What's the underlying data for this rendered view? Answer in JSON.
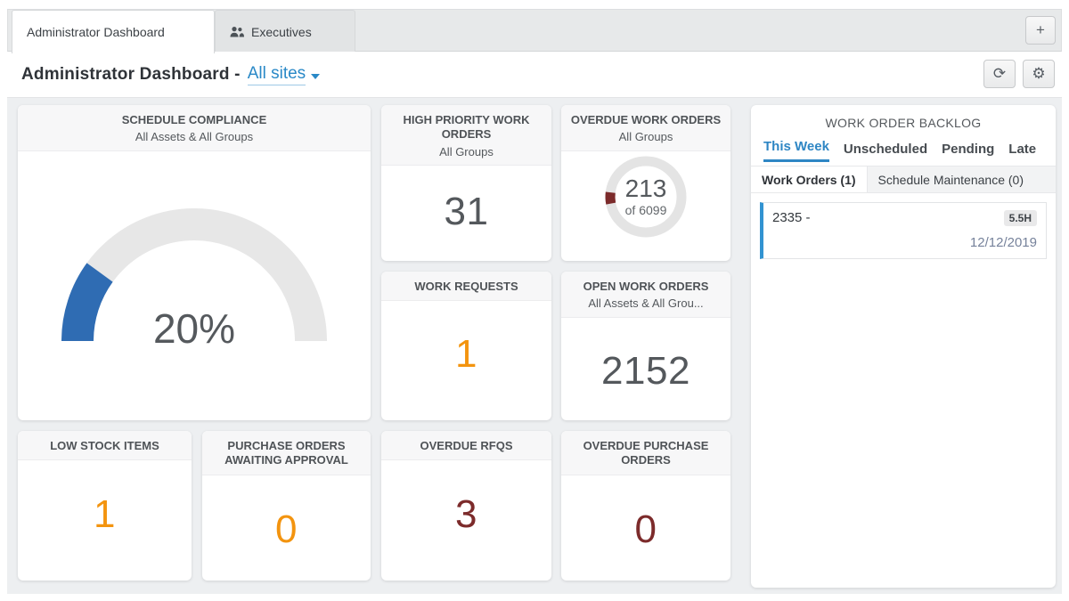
{
  "tabs": {
    "items": [
      {
        "label": "Administrator Dashboard",
        "active": true
      },
      {
        "label": "Executives",
        "icon": "users-icon",
        "active": false
      }
    ],
    "add_label": "+"
  },
  "header": {
    "title": "Administrator Dashboard -",
    "site_selector": "All sites"
  },
  "icons": {
    "refresh": "⟳",
    "settings": "⚙"
  },
  "cards": {
    "schedule_compliance": {
      "title": "SCHEDULE COMPLIANCE",
      "subtitle": "All Assets & All Groups",
      "value": "20%",
      "percent": 20
    },
    "high_priority": {
      "title": "HIGH PRIORITY WORK ORDERS",
      "subtitle": "All Groups",
      "value": "31"
    },
    "overdue_wo": {
      "title": "OVERDUE WORK ORDERS",
      "subtitle": "All Groups",
      "value": "213",
      "of_label": "of 6099",
      "count": 213,
      "total": 6099
    },
    "work_requests": {
      "title": "WORK REQUESTS",
      "value": "1"
    },
    "open_wo": {
      "title": "OPEN WORK ORDERS",
      "subtitle": "All Assets & All Grou...",
      "value": "2152"
    },
    "low_stock": {
      "title": "LOW STOCK ITEMS",
      "value": "1"
    },
    "po_awaiting": {
      "title": "PURCHASE ORDERS AWAITING APPROVAL",
      "value": "0"
    },
    "overdue_rfqs": {
      "title": "OVERDUE RFQS",
      "value": "3"
    },
    "overdue_po": {
      "title": "OVERDUE PURCHASE ORDERS",
      "value": "0"
    }
  },
  "backlog": {
    "title": "WORK ORDER BACKLOG",
    "tabs": [
      "This Week",
      "Unscheduled",
      "Pending",
      "Late"
    ],
    "subtabs": [
      "Work Orders (1)",
      "Schedule Maintenance (0)"
    ],
    "items": [
      {
        "id": "2335 -",
        "hours": "5.5H",
        "date": "12/12/2019"
      }
    ]
  },
  "colors": {
    "accent_blue": "#2a89c7",
    "gauge_blue": "#2f6cb3",
    "gauge_track": "#e7e7e7",
    "orange": "#f3940f",
    "maroon": "#7c2b2b",
    "donut_track": "#e4e4e4"
  }
}
